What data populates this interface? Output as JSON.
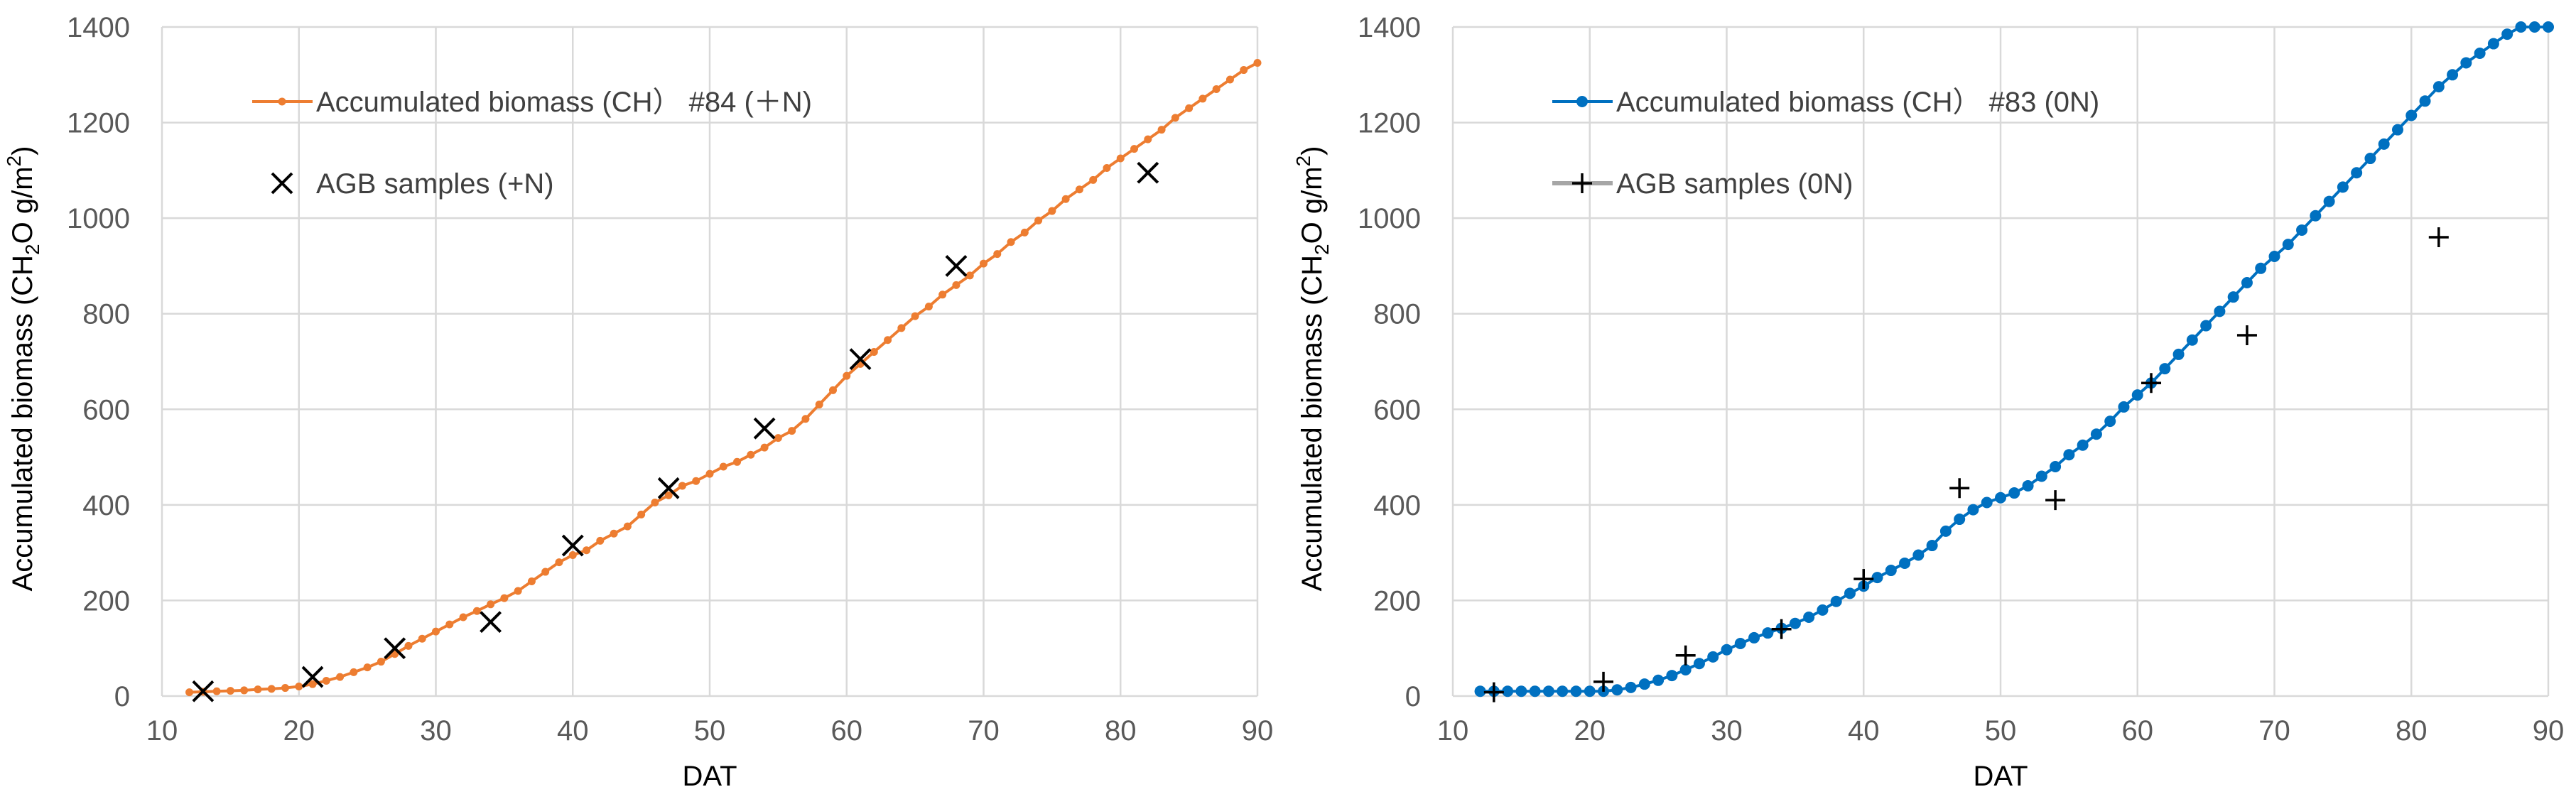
{
  "chart_data": [
    {
      "type": "line",
      "xlabel": "DAT",
      "ylabel": "Accumulated biomass (CH",
      "ylabel_sub": "2",
      "ylabel_tail": "O g/m",
      "ylabel_sup": "2",
      "ylabel_end": ")",
      "xlim": [
        10,
        90
      ],
      "ylim": [
        0,
        1400
      ],
      "x_ticks": [
        10,
        20,
        30,
        40,
        50,
        60,
        70,
        80,
        90
      ],
      "y_ticks": [
        0,
        200,
        400,
        600,
        800,
        1000,
        1200,
        1400
      ],
      "grid": true,
      "legend_position": "top-left",
      "series": [
        {
          "name": "Accumulated biomass (CH） #84 (＋N)",
          "kind": "line-markers",
          "color": "#ED7D31",
          "x": [
            12,
            13,
            14,
            15,
            16,
            17,
            18,
            19,
            20,
            21,
            22,
            23,
            24,
            25,
            26,
            27,
            28,
            29,
            30,
            31,
            32,
            33,
            34,
            35,
            36,
            37,
            38,
            39,
            40,
            41,
            42,
            43,
            44,
            45,
            46,
            47,
            48,
            49,
            50,
            51,
            52,
            53,
            54,
            55,
            56,
            57,
            58,
            59,
            60,
            61,
            62,
            63,
            64,
            65,
            66,
            67,
            68,
            69,
            70,
            71,
            72,
            73,
            74,
            75,
            76,
            77,
            78,
            79,
            80,
            81,
            82,
            83,
            84,
            85,
            86,
            87,
            88,
            89,
            90
          ],
          "y": [
            8,
            9,
            10,
            11,
            12,
            14,
            15,
            17,
            20,
            25,
            32,
            40,
            50,
            60,
            72,
            88,
            105,
            120,
            135,
            150,
            165,
            178,
            192,
            205,
            220,
            240,
            260,
            280,
            295,
            305,
            325,
            340,
            355,
            380,
            405,
            420,
            440,
            450,
            465,
            480,
            490,
            505,
            520,
            540,
            555,
            580,
            610,
            640,
            670,
            695,
            720,
            745,
            770,
            795,
            815,
            840,
            860,
            880,
            905,
            925,
            950,
            970,
            995,
            1015,
            1040,
            1060,
            1080,
            1105,
            1125,
            1145,
            1165,
            1185,
            1210,
            1230,
            1250,
            1270,
            1290,
            1310,
            1325
          ]
        },
        {
          "name": "AGB  samples (+N)",
          "kind": "markers-x",
          "color": "#000000",
          "x": [
            13,
            21,
            27,
            34,
            40,
            47,
            54,
            61,
            68,
            82
          ],
          "y": [
            10,
            40,
            100,
            155,
            315,
            435,
            560,
            705,
            900,
            1095
          ]
        }
      ]
    },
    {
      "type": "line",
      "xlabel": "DAT",
      "ylabel": "Accumulated biomass (CH",
      "ylabel_sub": "2",
      "ylabel_tail": "O g/m",
      "ylabel_sup": "2",
      "ylabel_end": ")",
      "xlim": [
        10,
        90
      ],
      "ylim": [
        0,
        1400
      ],
      "x_ticks": [
        10,
        20,
        30,
        40,
        50,
        60,
        70,
        80,
        90
      ],
      "y_ticks": [
        0,
        200,
        400,
        600,
        800,
        1000,
        1200,
        1400
      ],
      "grid": true,
      "legend_position": "top-left",
      "series": [
        {
          "name": "Accumulated biomass (CH） #83 (0N)",
          "kind": "line-markers",
          "color": "#0070C0",
          "x": [
            12,
            13,
            14,
            15,
            16,
            17,
            18,
            19,
            20,
            21,
            22,
            23,
            24,
            25,
            26,
            27,
            28,
            29,
            30,
            31,
            32,
            33,
            34,
            35,
            36,
            37,
            38,
            39,
            40,
            41,
            42,
            43,
            44,
            45,
            46,
            47,
            48,
            49,
            50,
            51,
            52,
            53,
            54,
            55,
            56,
            57,
            58,
            59,
            60,
            61,
            62,
            63,
            64,
            65,
            66,
            67,
            68,
            69,
            70,
            71,
            72,
            73,
            74,
            75,
            76,
            77,
            78,
            79,
            80,
            81,
            82,
            83,
            84,
            85,
            86,
            87,
            88,
            89,
            90
          ],
          "y": [
            10,
            10,
            10,
            10,
            10,
            10,
            10,
            10,
            10,
            10,
            13,
            18,
            25,
            33,
            43,
            55,
            68,
            82,
            97,
            110,
            122,
            132,
            142,
            152,
            165,
            180,
            198,
            215,
            230,
            248,
            263,
            278,
            295,
            315,
            345,
            370,
            390,
            405,
            415,
            425,
            440,
            460,
            480,
            505,
            525,
            548,
            575,
            605,
            630,
            655,
            685,
            715,
            745,
            775,
            805,
            835,
            865,
            895,
            920,
            945,
            975,
            1005,
            1035,
            1065,
            1095,
            1125,
            1155,
            1185,
            1215,
            1245,
            1275,
            1300,
            1325,
            1345,
            1365,
            1385,
            1400,
            1400,
            1400
          ]
        },
        {
          "name": "AGB  samples (0N)",
          "kind": "markers-plus",
          "color": "#000000",
          "x": [
            13,
            21,
            27,
            34,
            40,
            47,
            54,
            61,
            68,
            82
          ],
          "y": [
            8,
            30,
            85,
            140,
            245,
            435,
            410,
            655,
            755,
            960
          ]
        }
      ]
    }
  ]
}
